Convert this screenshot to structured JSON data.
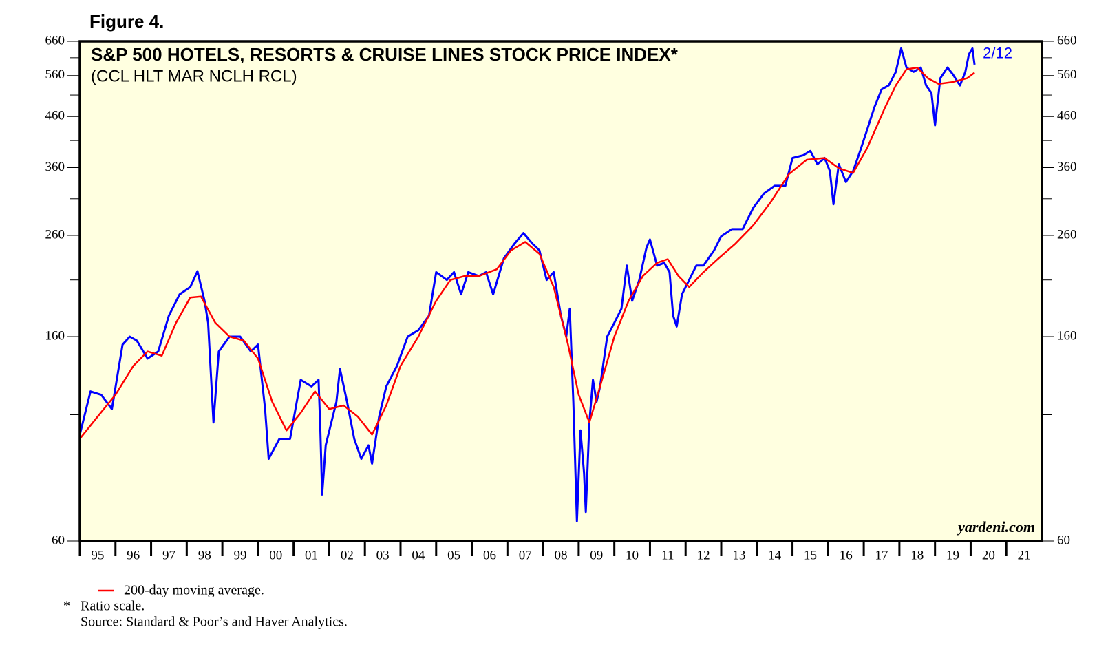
{
  "chart_data": {
    "type": "line",
    "figure_label": "Figure 4.",
    "title": "S&P 500 HOTELS, RESORTS & CRUISE LINES STOCK PRICE INDEX*",
    "subtitle": "(CCL HLT MAR NCLH RCL)",
    "annotations": {
      "last_date": "2/12",
      "watermark": "yardeni.com"
    },
    "footnotes": [
      "Ratio scale.",
      "Source: Standard & Poor’s and Haver Analytics."
    ],
    "footnote_marker": "*",
    "log_scale": true,
    "ylim": [
      60,
      660
    ],
    "yticks": [
      60,
      160,
      260,
      360,
      460,
      560,
      660
    ],
    "yminorticks": [
      110,
      210,
      310,
      410,
      510,
      610
    ],
    "xlim": [
      1995,
      2022
    ],
    "xticks": [
      {
        "value": 1995,
        "label": "95"
      },
      {
        "value": 1996,
        "label": "96"
      },
      {
        "value": 1997,
        "label": "97"
      },
      {
        "value": 1998,
        "label": "98"
      },
      {
        "value": 1999,
        "label": "99"
      },
      {
        "value": 2000,
        "label": "00"
      },
      {
        "value": 2001,
        "label": "01"
      },
      {
        "value": 2002,
        "label": "02"
      },
      {
        "value": 2003,
        "label": "03"
      },
      {
        "value": 2004,
        "label": "04"
      },
      {
        "value": 2005,
        "label": "05"
      },
      {
        "value": 2006,
        "label": "06"
      },
      {
        "value": 2007,
        "label": "07"
      },
      {
        "value": 2008,
        "label": "08"
      },
      {
        "value": 2009,
        "label": "09"
      },
      {
        "value": 2010,
        "label": "10"
      },
      {
        "value": 2011,
        "label": "11"
      },
      {
        "value": 2012,
        "label": "12"
      },
      {
        "value": 2013,
        "label": "13"
      },
      {
        "value": 2014,
        "label": "14"
      },
      {
        "value": 2015,
        "label": "15"
      },
      {
        "value": 2016,
        "label": "16"
      },
      {
        "value": 2017,
        "label": "17"
      },
      {
        "value": 2018,
        "label": "18"
      },
      {
        "value": 2019,
        "label": "19"
      },
      {
        "value": 2020,
        "label": "20"
      },
      {
        "value": 2021,
        "label": "21"
      }
    ],
    "background": "#ffffe0",
    "series": [
      {
        "color": "#0000ff",
        "x": [
          1995.0,
          1995.3,
          1995.6,
          1995.9,
          1996.2,
          1996.4,
          1996.6,
          1996.9,
          1997.2,
          1997.5,
          1997.8,
          1998.1,
          1998.3,
          1998.5,
          1998.6,
          1998.75,
          1998.9,
          1999.2,
          1999.5,
          1999.8,
          2000.0,
          2000.2,
          2000.3,
          2000.6,
          2000.9,
          2001.2,
          2001.5,
          2001.7,
          2001.75,
          2001.8,
          2001.9,
          2002.2,
          2002.3,
          2002.5,
          2002.7,
          2002.9,
          2003.1,
          2003.2,
          2003.4,
          2003.6,
          2003.9,
          2004.2,
          2004.5,
          2004.8,
          2005.0,
          2005.3,
          2005.5,
          2005.7,
          2005.9,
          2006.2,
          2006.4,
          2006.6,
          2006.9,
          2007.2,
          2007.45,
          2007.7,
          2007.9,
          2008.1,
          2008.3,
          2008.5,
          2008.65,
          2008.75,
          2008.85,
          2008.95,
          2009.05,
          2009.15,
          2009.2,
          2009.3,
          2009.4,
          2009.5,
          2009.6,
          2009.8,
          2010.0,
          2010.2,
          2010.35,
          2010.5,
          2010.7,
          2010.9,
          2011.0,
          2011.2,
          2011.4,
          2011.55,
          2011.65,
          2011.75,
          2011.9,
          2012.1,
          2012.3,
          2012.5,
          2012.8,
          2013.0,
          2013.3,
          2013.6,
          2013.9,
          2014.2,
          2014.5,
          2014.8,
          2015.0,
          2015.3,
          2015.5,
          2015.7,
          2015.9,
          2016.05,
          2016.15,
          2016.3,
          2016.5,
          2016.7,
          2016.9,
          2017.1,
          2017.3,
          2017.5,
          2017.7,
          2017.9,
          2018.05,
          2018.2,
          2018.4,
          2018.6,
          2018.75,
          2018.9,
          2019.0,
          2019.15,
          2019.35,
          2019.5,
          2019.7,
          2019.85,
          2019.95,
          2020.05,
          2020.11
        ],
        "values": [
          100,
          123,
          121,
          113,
          154,
          160,
          157,
          144,
          149,
          177,
          196,
          203,
          219,
          190,
          171,
          106,
          149,
          160,
          160,
          149,
          154,
          113,
          89,
          98,
          98,
          130,
          126,
          130,
          102,
          75,
          95,
          117,
          137,
          117,
          98,
          89,
          95,
          87,
          109,
          126,
          139,
          160,
          165,
          177,
          218,
          210,
          218,
          196,
          218,
          214,
          218,
          196,
          233,
          250,
          263,
          250,
          242,
          210,
          218,
          177,
          160,
          183,
          117,
          66,
          102,
          83,
          69,
          106,
          130,
          117,
          126,
          160,
          171,
          183,
          225,
          190,
          210,
          245,
          255,
          225,
          228,
          218,
          177,
          168,
          196,
          210,
          225,
          225,
          242,
          259,
          268,
          268,
          297,
          318,
          330,
          330,
          377,
          382,
          390,
          366,
          377,
          354,
          302,
          366,
          336,
          354,
          390,
          433,
          481,
          524,
          534,
          570,
          638,
          582,
          570,
          582,
          534,
          515,
          441,
          553,
          582,
          563,
          534,
          570,
          620,
          638,
          590
        ]
      },
      {
        "name": "200-day moving average.",
        "color": "#ff0000",
        "x": [
          1995.0,
          1995.5,
          1996.0,
          1996.5,
          1996.9,
          1997.3,
          1997.7,
          1998.1,
          1998.4,
          1998.8,
          1999.2,
          1999.6,
          2000.0,
          2000.4,
          2000.8,
          2001.2,
          2001.6,
          2002.0,
          2002.4,
          2002.8,
          2003.2,
          2003.6,
          2004.0,
          2004.5,
          2005.0,
          2005.4,
          2005.8,
          2006.2,
          2006.7,
          2007.1,
          2007.5,
          2007.9,
          2008.3,
          2008.7,
          2009.0,
          2009.3,
          2009.6,
          2010.0,
          2010.4,
          2010.8,
          2011.2,
          2011.5,
          2011.8,
          2012.1,
          2012.5,
          2012.9,
          2013.4,
          2013.9,
          2014.4,
          2014.9,
          2015.4,
          2015.9,
          2016.3,
          2016.7,
          2017.1,
          2017.6,
          2017.9,
          2018.2,
          2018.5,
          2018.8,
          2019.1,
          2019.5,
          2019.9,
          2020.11
        ],
        "values": [
          98,
          109,
          121,
          139,
          149,
          146,
          171,
          193,
          194,
          171,
          160,
          157,
          144,
          117,
          102,
          111,
          123,
          113,
          115,
          109,
          100,
          115,
          139,
          160,
          190,
          210,
          214,
          214,
          221,
          242,
          252,
          238,
          203,
          154,
          121,
          106,
          126,
          160,
          190,
          214,
          228,
          232,
          214,
          203,
          218,
          232,
          250,
          273,
          306,
          349,
          374,
          377,
          359,
          351,
          396,
          481,
          534,
          577,
          582,
          553,
          538,
          543,
          553,
          568
        ]
      }
    ]
  }
}
